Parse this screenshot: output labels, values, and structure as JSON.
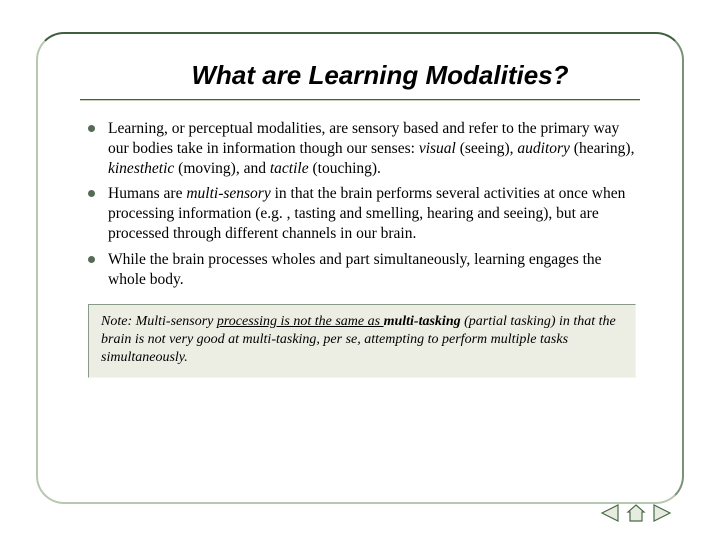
{
  "title": "What are Learning Modalities?",
  "frame": {
    "border_top": "#3f5f3f",
    "border_left": "#b8c8b0",
    "border_right": "#7a927a",
    "border_bottom": "#b8c8b0"
  },
  "bullets": [
    {
      "segments": [
        {
          "t": "Learning, or perceptual modalities, are sensory based and refer to the primary way our bodies take in information though our senses: "
        },
        {
          "t": "visual",
          "i": true
        },
        {
          "t": " (seeing), "
        },
        {
          "t": "auditory",
          "i": true
        },
        {
          "t": " (hearing), "
        },
        {
          "t": "kinesthetic",
          "i": true
        },
        {
          "t": " (moving), and "
        },
        {
          "t": "tactile",
          "i": true
        },
        {
          "t": " (touching)."
        }
      ]
    },
    {
      "segments": [
        {
          "t": "Humans are "
        },
        {
          "t": "multi-sensory",
          "i": true
        },
        {
          "t": " in that the brain performs several activities at once when processing information (e.g. , tasting and smelling, hearing and seeing), but are processed through different channels in our brain."
        }
      ]
    },
    {
      "segments": [
        {
          "t": "While the brain processes wholes and part simultaneously, learning engages the whole body."
        }
      ]
    }
  ],
  "note": {
    "background": "#eceee3",
    "segments": [
      {
        "t": "Note:  Multi-sensory "
      },
      {
        "t": "processing is not the same as ",
        "u": true
      },
      {
        "t": "multi-tasking",
        "b": true
      },
      {
        "t": " (partial tasking) in that the brain is not very good at multi-tasking, per se, attempting to perform multiple tasks simultaneously."
      }
    ]
  },
  "nav": {
    "prev_icon": "triangle-left",
    "home_icon": "house",
    "next_icon": "triangle-right",
    "stroke": "#4a6a4a",
    "fill": "#e8ece0"
  }
}
